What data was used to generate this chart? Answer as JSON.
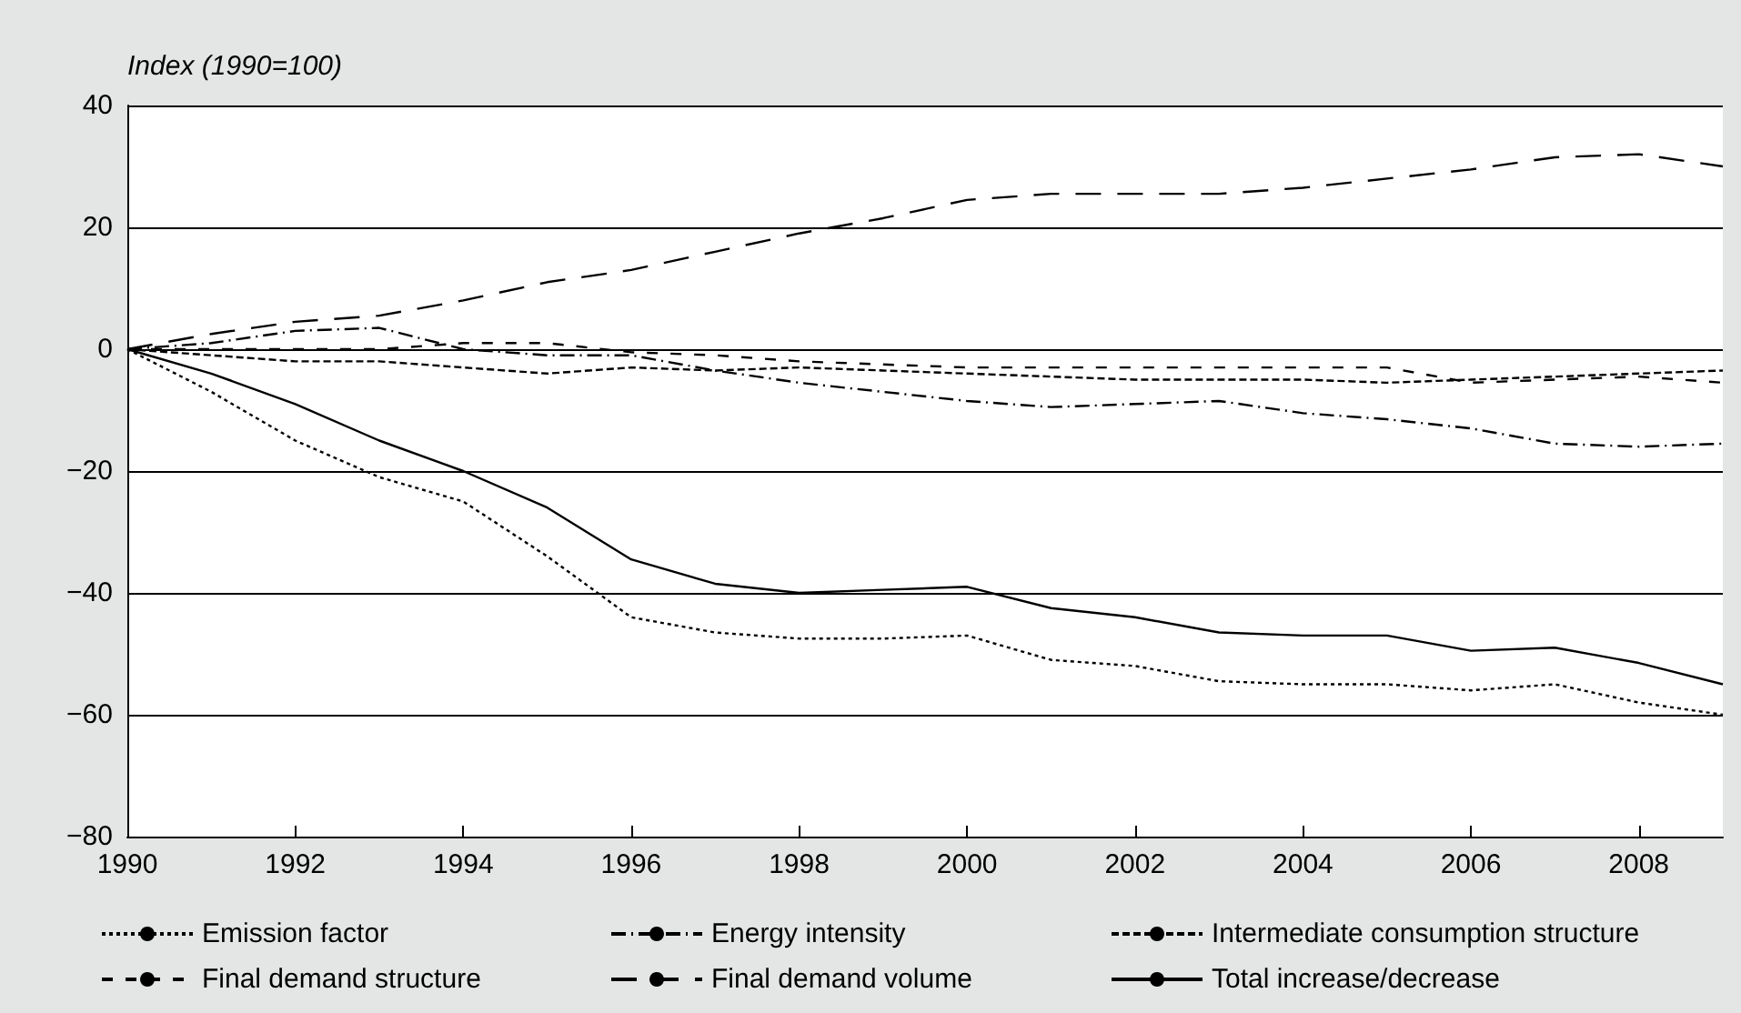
{
  "chart_data": {
    "type": "line",
    "ylabel": "Index (1990=100)",
    "x": [
      1990,
      1991,
      1992,
      1993,
      1994,
      1995,
      1996,
      1997,
      1998,
      1999,
      2000,
      2001,
      2002,
      2003,
      2004,
      2005,
      2006,
      2007,
      2008,
      2009
    ],
    "xlim": [
      1990,
      2009
    ],
    "xticks": [
      1990,
      1992,
      1994,
      1996,
      1998,
      2000,
      2002,
      2004,
      2006,
      2008
    ],
    "ylim": [
      -80,
      40
    ],
    "yticks": [
      -80,
      -60,
      -40,
      -20,
      0,
      20,
      40
    ],
    "grid": "y",
    "legend": "bottom",
    "marker": "none",
    "series": [
      {
        "name": "Emission factor",
        "color": "#000000",
        "line_style": "dotted",
        "values": [
          0,
          -7,
          -15,
          -21,
          -25,
          -34,
          -44,
          -46.5,
          -47.5,
          -47.5,
          -47,
          -51,
          -52,
          -54.5,
          -55,
          -55,
          -56,
          -55,
          -58,
          -60
        ]
      },
      {
        "name": "Energy intensity",
        "color": "#000000",
        "line_style": "dashed",
        "values": [
          0,
          1,
          3,
          3.5,
          0,
          -1,
          -1,
          -3.5,
          -5.5,
          -7,
          -8.5,
          -9.5,
          -9,
          -8.5,
          -10.5,
          -11.5,
          -13,
          -15.5,
          -16,
          -15.5
        ]
      },
      {
        "name": "Intermediate consumption structure",
        "color": "#000000",
        "line_style": "dashed",
        "values": [
          0,
          -1,
          -2,
          -2,
          -3,
          -4,
          -3,
          -3.5,
          -3,
          -3.5,
          -4,
          -4.5,
          -5,
          -5,
          -5,
          -5.5,
          -5,
          -4.5,
          -4,
          -3.5
        ]
      },
      {
        "name": "Final demand structure",
        "color": "#000000",
        "line_style": "dashed",
        "values": [
          0,
          0,
          0,
          0,
          1,
          1,
          -0.5,
          -1,
          -2,
          -2.5,
          -3,
          -3,
          -3,
          -3,
          -3,
          -3,
          -5.5,
          -5,
          -4.5,
          -5.5
        ]
      },
      {
        "name": "Final demand volume",
        "color": "#000000",
        "line_style": "dashed",
        "values": [
          0,
          2.5,
          4.5,
          5.5,
          8,
          11,
          13,
          16,
          19,
          21.5,
          24.5,
          25.5,
          25.5,
          25.5,
          26.5,
          28,
          29.5,
          31.5,
          32,
          30
        ]
      },
      {
        "name": "Total increase/decrease",
        "color": "#000000",
        "line_style": "solid",
        "values": [
          0,
          -4,
          -9,
          -15,
          -20,
          -26,
          -34.5,
          -38.5,
          -40,
          -39.5,
          -39,
          -42.5,
          -44,
          -46.5,
          -47,
          -47,
          -49.5,
          -49,
          -51.5,
          -55
        ]
      }
    ]
  }
}
